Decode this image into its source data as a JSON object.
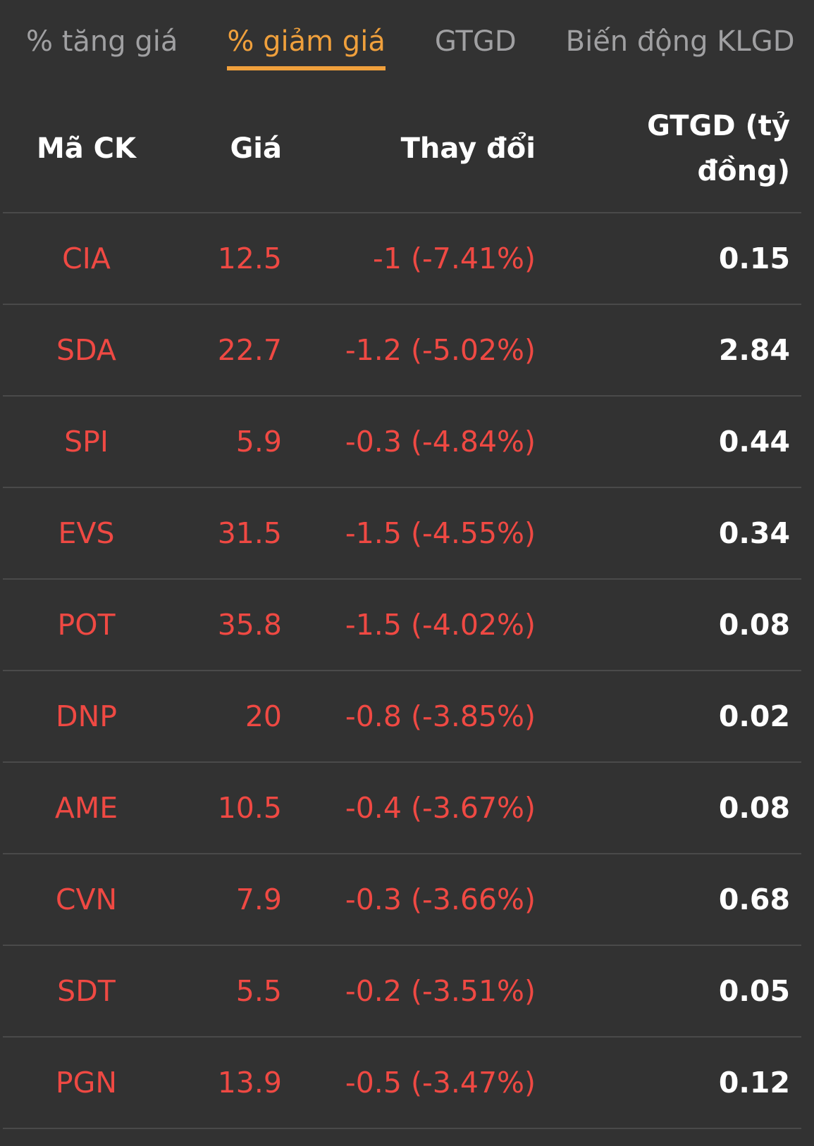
{
  "colors": {
    "background": "#323232",
    "negative_red": "#ef4943",
    "accent_orange": "#f0a03c",
    "tab_inactive": "#a0a0a2",
    "divider": "#4a4a4a",
    "text_white": "#ffffff"
  },
  "tabs": [
    {
      "label": "% tăng giá",
      "active": false
    },
    {
      "label": "% giảm giá",
      "active": true
    },
    {
      "label": "GTGD",
      "active": false
    },
    {
      "label": "Biến động KLGD",
      "active": false
    }
  ],
  "table": {
    "columns": [
      "Mã CK",
      "Giá",
      "Thay đổi",
      "GTGD (tỷ đồng)"
    ],
    "rows": [
      {
        "code": "CIA",
        "price": "12.5",
        "change": "-1 (-7.41%)",
        "value": "0.15"
      },
      {
        "code": "SDA",
        "price": "22.7",
        "change": "-1.2 (-5.02%)",
        "value": "2.84"
      },
      {
        "code": "SPI",
        "price": "5.9",
        "change": "-0.3 (-4.84%)",
        "value": "0.44"
      },
      {
        "code": "EVS",
        "price": "31.5",
        "change": "-1.5 (-4.55%)",
        "value": "0.34"
      },
      {
        "code": "POT",
        "price": "35.8",
        "change": "-1.5 (-4.02%)",
        "value": "0.08"
      },
      {
        "code": "DNP",
        "price": "20",
        "change": "-0.8 (-3.85%)",
        "value": "0.02"
      },
      {
        "code": "AME",
        "price": "10.5",
        "change": "-0.4 (-3.67%)",
        "value": "0.08"
      },
      {
        "code": "CVN",
        "price": "7.9",
        "change": "-0.3 (-3.66%)",
        "value": "0.68"
      },
      {
        "code": "SDT",
        "price": "5.5",
        "change": "-0.2 (-3.51%)",
        "value": "0.05"
      },
      {
        "code": "PGN",
        "price": "13.9",
        "change": "-0.5 (-3.47%)",
        "value": "0.12"
      }
    ]
  }
}
